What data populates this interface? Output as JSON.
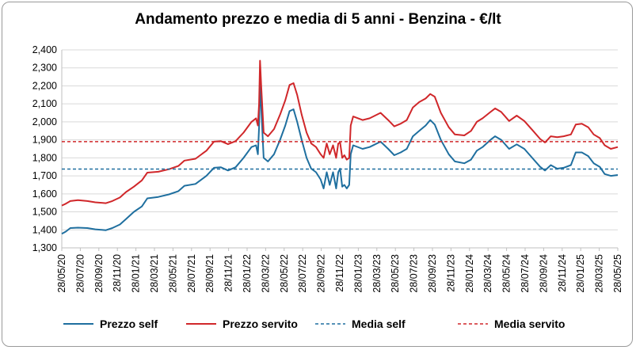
{
  "chart_data": {
    "type": "line",
    "title": "Andamento prezzo e media di 5 anni - Benzina - €/lt",
    "xlabel": "",
    "ylabel": "",
    "ylim": [
      1.3,
      2.4
    ],
    "y_ticks": [
      "1,300",
      "1,400",
      "1,500",
      "1,600",
      "1,700",
      "1,800",
      "1,900",
      "2,000",
      "2,100",
      "2,200",
      "2,300",
      "2,400"
    ],
    "x_range": [
      "2020-05-28",
      "2025-05-28"
    ],
    "x_tick_labels": [
      "28/05/20",
      "28/07/20",
      "28/09/20",
      "28/11/20",
      "28/01/21",
      "28/03/21",
      "28/05/21",
      "28/07/21",
      "28/09/21",
      "28/11/21",
      "28/01/22",
      "28/03/22",
      "28/05/22",
      "28/07/22",
      "28/09/22",
      "28/11/22",
      "28/01/23",
      "28/03/23",
      "28/05/23",
      "28/07/23",
      "28/09/23",
      "28/11/23",
      "28/01/24",
      "28/03/24",
      "28/05/24",
      "28/07/24",
      "28/09/24",
      "28/11/24",
      "28/01/25",
      "28/03/25",
      "28/05/25"
    ],
    "grid": "horizontal",
    "legend_position": "bottom",
    "series": [
      {
        "name": "Prezzo self",
        "color": "#1f6f9f",
        "style": "solid",
        "points": [
          [
            "2020-05-28",
            1.378
          ],
          [
            "2020-06-10",
            1.39
          ],
          [
            "2020-06-25",
            1.41
          ],
          [
            "2020-07-20",
            1.412
          ],
          [
            "2020-08-20",
            1.41
          ],
          [
            "2020-09-15",
            1.403
          ],
          [
            "2020-10-20",
            1.398
          ],
          [
            "2020-11-10",
            1.41
          ],
          [
            "2020-12-05",
            1.43
          ],
          [
            "2020-12-25",
            1.46
          ],
          [
            "2021-01-20",
            1.5
          ],
          [
            "2021-02-15",
            1.53
          ],
          [
            "2021-03-05",
            1.575
          ],
          [
            "2021-04-10",
            1.583
          ],
          [
            "2021-05-15",
            1.597
          ],
          [
            "2021-06-15",
            1.615
          ],
          [
            "2021-07-05",
            1.645
          ],
          [
            "2021-08-10",
            1.655
          ],
          [
            "2021-09-15",
            1.7
          ],
          [
            "2021-10-10",
            1.745
          ],
          [
            "2021-11-01",
            1.748
          ],
          [
            "2021-11-25",
            1.73
          ],
          [
            "2021-12-20",
            1.748
          ],
          [
            "2022-01-15",
            1.8
          ],
          [
            "2022-02-10",
            1.86
          ],
          [
            "2022-02-25",
            1.87
          ],
          [
            "2022-03-03",
            1.82
          ],
          [
            "2022-03-07",
            1.97
          ],
          [
            "2022-03-10",
            2.22
          ],
          [
            "2022-03-14",
            2.08
          ],
          [
            "2022-03-22",
            1.8
          ],
          [
            "2022-04-05",
            1.78
          ],
          [
            "2022-04-25",
            1.82
          ],
          [
            "2022-05-15",
            1.9
          ],
          [
            "2022-06-01",
            1.98
          ],
          [
            "2022-06-15",
            2.06
          ],
          [
            "2022-06-28",
            2.07
          ],
          [
            "2022-07-10",
            2.0
          ],
          [
            "2022-07-25",
            1.9
          ],
          [
            "2022-08-10",
            1.8
          ],
          [
            "2022-08-25",
            1.74
          ],
          [
            "2022-09-10",
            1.72
          ],
          [
            "2022-09-25",
            1.68
          ],
          [
            "2022-10-05",
            1.63
          ],
          [
            "2022-10-15",
            1.72
          ],
          [
            "2022-10-25",
            1.65
          ],
          [
            "2022-11-05",
            1.72
          ],
          [
            "2022-11-15",
            1.63
          ],
          [
            "2022-11-22",
            1.72
          ],
          [
            "2022-11-28",
            1.74
          ],
          [
            "2022-12-05",
            1.64
          ],
          [
            "2022-12-12",
            1.65
          ],
          [
            "2022-12-20",
            1.63
          ],
          [
            "2022-12-28",
            1.65
          ],
          [
            "2023-01-02",
            1.82
          ],
          [
            "2023-01-10",
            1.87
          ],
          [
            "2023-02-10",
            1.85
          ],
          [
            "2023-03-05",
            1.86
          ],
          [
            "2023-04-10",
            1.89
          ],
          [
            "2023-05-05",
            1.85
          ],
          [
            "2023-05-25",
            1.815
          ],
          [
            "2023-06-15",
            1.83
          ],
          [
            "2023-07-05",
            1.85
          ],
          [
            "2023-07-25",
            1.92
          ],
          [
            "2023-08-15",
            1.95
          ],
          [
            "2023-09-05",
            1.98
          ],
          [
            "2023-09-20",
            2.01
          ],
          [
            "2023-10-05",
            1.985
          ],
          [
            "2023-10-25",
            1.9
          ],
          [
            "2023-11-20",
            1.82
          ],
          [
            "2023-12-10",
            1.78
          ],
          [
            "2024-01-10",
            1.77
          ],
          [
            "2024-02-01",
            1.79
          ],
          [
            "2024-02-20",
            1.84
          ],
          [
            "2024-03-10",
            1.86
          ],
          [
            "2024-04-05",
            1.9
          ],
          [
            "2024-04-20",
            1.92
          ],
          [
            "2024-05-10",
            1.9
          ],
          [
            "2024-06-05",
            1.85
          ],
          [
            "2024-06-30",
            1.875
          ],
          [
            "2024-07-25",
            1.85
          ],
          [
            "2024-08-20",
            1.8
          ],
          [
            "2024-09-15",
            1.75
          ],
          [
            "2024-10-01",
            1.73
          ],
          [
            "2024-10-20",
            1.76
          ],
          [
            "2024-11-10",
            1.74
          ],
          [
            "2024-12-01",
            1.745
          ],
          [
            "2024-12-25",
            1.76
          ],
          [
            "2025-01-10",
            1.83
          ],
          [
            "2025-01-30",
            1.83
          ],
          [
            "2025-02-20",
            1.81
          ],
          [
            "2025-03-10",
            1.77
          ],
          [
            "2025-03-30",
            1.75
          ],
          [
            "2025-04-15",
            1.71
          ],
          [
            "2025-05-05",
            1.7
          ],
          [
            "2025-05-28",
            1.705
          ]
        ]
      },
      {
        "name": "Prezzo servito",
        "color": "#d0272a",
        "style": "solid",
        "points": [
          [
            "2020-05-28",
            1.535
          ],
          [
            "2020-06-10",
            1.545
          ],
          [
            "2020-06-25",
            1.56
          ],
          [
            "2020-07-20",
            1.565
          ],
          [
            "2020-08-20",
            1.56
          ],
          [
            "2020-09-15",
            1.553
          ],
          [
            "2020-10-20",
            1.548
          ],
          [
            "2020-11-10",
            1.56
          ],
          [
            "2020-12-05",
            1.58
          ],
          [
            "2020-12-25",
            1.61
          ],
          [
            "2021-01-20",
            1.64
          ],
          [
            "2021-02-15",
            1.675
          ],
          [
            "2021-03-05",
            1.718
          ],
          [
            "2021-04-10",
            1.723
          ],
          [
            "2021-05-15",
            1.737
          ],
          [
            "2021-06-15",
            1.755
          ],
          [
            "2021-07-05",
            1.785
          ],
          [
            "2021-08-10",
            1.795
          ],
          [
            "2021-09-15",
            1.84
          ],
          [
            "2021-10-10",
            1.89
          ],
          [
            "2021-11-01",
            1.893
          ],
          [
            "2021-11-25",
            1.876
          ],
          [
            "2021-12-20",
            1.893
          ],
          [
            "2022-01-15",
            1.94
          ],
          [
            "2022-02-10",
            2.0
          ],
          [
            "2022-02-25",
            2.02
          ],
          [
            "2022-03-03",
            1.98
          ],
          [
            "2022-03-07",
            2.1
          ],
          [
            "2022-03-10",
            2.34
          ],
          [
            "2022-03-14",
            2.2
          ],
          [
            "2022-03-22",
            1.94
          ],
          [
            "2022-04-05",
            1.92
          ],
          [
            "2022-04-25",
            1.96
          ],
          [
            "2022-05-15",
            2.04
          ],
          [
            "2022-06-01",
            2.12
          ],
          [
            "2022-06-15",
            2.205
          ],
          [
            "2022-06-28",
            2.215
          ],
          [
            "2022-07-10",
            2.15
          ],
          [
            "2022-07-25",
            2.04
          ],
          [
            "2022-08-10",
            1.94
          ],
          [
            "2022-08-25",
            1.88
          ],
          [
            "2022-09-10",
            1.86
          ],
          [
            "2022-09-25",
            1.82
          ],
          [
            "2022-10-05",
            1.8
          ],
          [
            "2022-10-15",
            1.88
          ],
          [
            "2022-10-25",
            1.82
          ],
          [
            "2022-11-05",
            1.87
          ],
          [
            "2022-11-15",
            1.8
          ],
          [
            "2022-11-22",
            1.88
          ],
          [
            "2022-11-28",
            1.885
          ],
          [
            "2022-12-05",
            1.8
          ],
          [
            "2022-12-12",
            1.815
          ],
          [
            "2022-12-20",
            1.79
          ],
          [
            "2022-12-28",
            1.8
          ],
          [
            "2023-01-02",
            1.98
          ],
          [
            "2023-01-10",
            2.03
          ],
          [
            "2023-02-10",
            2.01
          ],
          [
            "2023-03-05",
            2.02
          ],
          [
            "2023-04-10",
            2.05
          ],
          [
            "2023-05-05",
            2.01
          ],
          [
            "2023-05-25",
            1.975
          ],
          [
            "2023-06-15",
            1.99
          ],
          [
            "2023-07-05",
            2.01
          ],
          [
            "2023-07-25",
            2.08
          ],
          [
            "2023-08-15",
            2.11
          ],
          [
            "2023-09-05",
            2.13
          ],
          [
            "2023-09-20",
            2.155
          ],
          [
            "2023-10-05",
            2.14
          ],
          [
            "2023-10-25",
            2.05
          ],
          [
            "2023-11-20",
            1.97
          ],
          [
            "2023-12-10",
            1.93
          ],
          [
            "2024-01-10",
            1.925
          ],
          [
            "2024-02-01",
            1.95
          ],
          [
            "2024-02-20",
            2.0
          ],
          [
            "2024-03-10",
            2.02
          ],
          [
            "2024-04-05",
            2.055
          ],
          [
            "2024-04-20",
            2.075
          ],
          [
            "2024-05-10",
            2.055
          ],
          [
            "2024-06-05",
            2.005
          ],
          [
            "2024-06-30",
            2.035
          ],
          [
            "2024-07-25",
            2.005
          ],
          [
            "2024-08-20",
            1.955
          ],
          [
            "2024-09-15",
            1.905
          ],
          [
            "2024-10-01",
            1.885
          ],
          [
            "2024-10-20",
            1.92
          ],
          [
            "2024-11-10",
            1.915
          ],
          [
            "2024-12-01",
            1.92
          ],
          [
            "2024-12-25",
            1.93
          ],
          [
            "2025-01-10",
            1.985
          ],
          [
            "2025-01-30",
            1.99
          ],
          [
            "2025-02-20",
            1.97
          ],
          [
            "2025-03-10",
            1.93
          ],
          [
            "2025-03-30",
            1.91
          ],
          [
            "2025-04-15",
            1.87
          ],
          [
            "2025-05-05",
            1.85
          ],
          [
            "2025-05-28",
            1.86
          ]
        ]
      },
      {
        "name": "Media self",
        "color": "#1f6f9f",
        "style": "dashed",
        "constant": 1.738
      },
      {
        "name": "Media servito",
        "color": "#d0272a",
        "style": "dashed",
        "constant": 1.89
      }
    ]
  }
}
